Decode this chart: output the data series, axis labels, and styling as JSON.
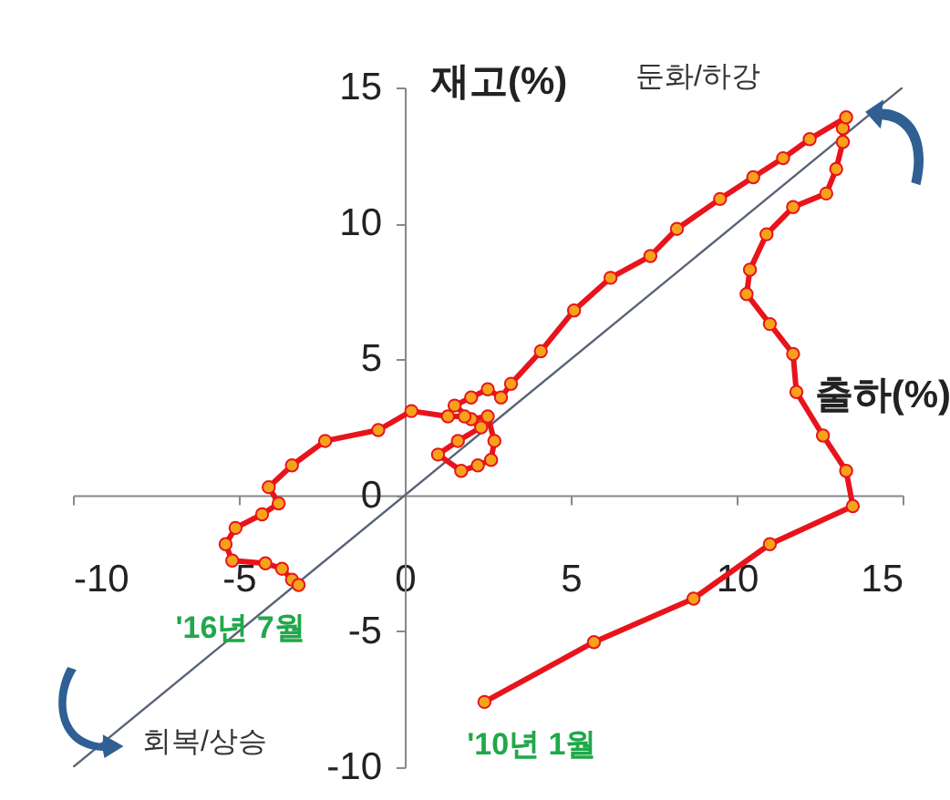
{
  "chart_data": {
    "type": "line",
    "xlabel": "출하(%)",
    "ylabel": "재고(%)",
    "xlim": [
      -10,
      15
    ],
    "ylim": [
      -10,
      15
    ],
    "xticks": [
      -10,
      -5,
      0,
      5,
      10,
      15
    ],
    "yticks": [
      -10,
      -5,
      0,
      5,
      10,
      15
    ],
    "grid": false,
    "marker": "circle",
    "line_style": "solid",
    "series": [
      {
        "type": "line",
        "color": "#5a6478",
        "marker": "none",
        "x": [
          -10,
          15
        ],
        "values": [
          -10,
          15
        ]
      },
      {
        "color": "#e8141c",
        "x": [
          2.4,
          5.7,
          8.7,
          11.0,
          13.5,
          13.3,
          12.6,
          11.8,
          11.7,
          11.0,
          10.3,
          10.4,
          10.9,
          11.7,
          12.7,
          13.0,
          13.2,
          13.2,
          13.3,
          12.2,
          11.4,
          10.5,
          9.5,
          8.2,
          7.4,
          6.2,
          5.1,
          4.1,
          3.2,
          2.9,
          2.5,
          2.0,
          1.5,
          2.0,
          2.5,
          2.7,
          2.6,
          2.2,
          1.7,
          1.0,
          1.6,
          2.3,
          1.8,
          1.3,
          0.2,
          -0.8,
          -2.4,
          -3.4,
          -4.1,
          -3.8,
          -4.3,
          -5.1,
          -5.4,
          -5.2,
          -4.2,
          -3.7,
          -3.4,
          -3.2
        ],
        "values": [
          -7.6,
          -5.4,
          -3.8,
          -1.8,
          -0.4,
          0.9,
          2.2,
          3.8,
          5.2,
          6.3,
          7.4,
          8.3,
          9.6,
          10.6,
          11.1,
          12.0,
          13.0,
          13.5,
          13.9,
          13.1,
          12.4,
          11.7,
          10.9,
          9.8,
          8.8,
          8.0,
          6.8,
          5.3,
          4.1,
          3.6,
          3.9,
          3.6,
          3.3,
          2.8,
          2.9,
          2.0,
          1.3,
          1.1,
          0.9,
          1.5,
          2.0,
          2.5,
          2.9,
          2.9,
          3.1,
          2.4,
          2.0,
          1.1,
          0.3,
          -0.3,
          -0.7,
          -1.2,
          -1.8,
          -2.4,
          -2.5,
          -2.7,
          -3.1,
          -3.3
        ]
      }
    ],
    "annotations": [
      "둔화/하강",
      "회복/상승",
      {
        "text": "'16년 7월",
        "x": -3.2,
        "y": -3.3
      },
      {
        "text": "'10년 1월",
        "x": 2.4,
        "y": -7.6
      }
    ]
  }
}
